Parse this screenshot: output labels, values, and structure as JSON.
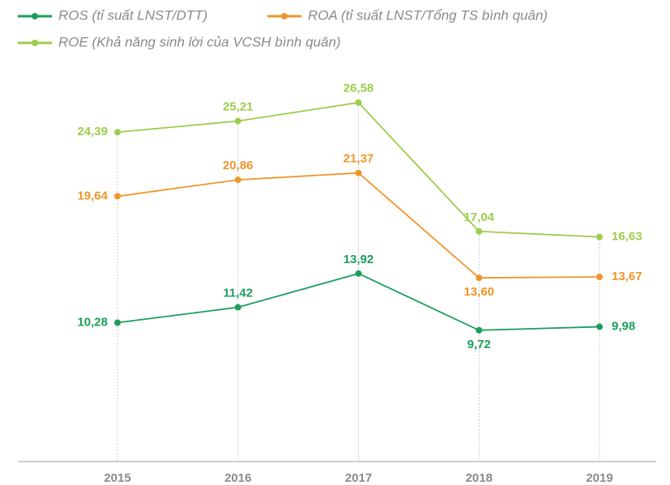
{
  "chart_data": {
    "type": "line",
    "categories": [
      "2015",
      "2016",
      "2017",
      "2018",
      "2019"
    ],
    "series": [
      {
        "name": "ROS (tỉ suất LNST/DTT)",
        "color": "#1a9e5a",
        "values": [
          10.28,
          11.42,
          13.92,
          9.72,
          9.98
        ],
        "value_labels": [
          "10,28",
          "11,42",
          "13,92",
          "9,72",
          "9,98"
        ]
      },
      {
        "name": "ROA (tỉ suất LNST/Tổng TS bình quân)",
        "color": "#f0952a",
        "values": [
          19.64,
          20.86,
          21.37,
          13.6,
          13.67
        ],
        "value_labels": [
          "19,64",
          "20,86",
          "21,37",
          "13,60",
          "13,67"
        ]
      },
      {
        "name": "ROE (Khả năng sinh lời của VCSH bình quân)",
        "color": "#9ccc4b",
        "values": [
          24.39,
          25.21,
          26.58,
          17.04,
          16.63
        ],
        "value_labels": [
          "24,39",
          "25,21",
          "26,58",
          "17,04",
          "16,63"
        ]
      }
    ],
    "ylim": [
      0,
      28
    ]
  }
}
